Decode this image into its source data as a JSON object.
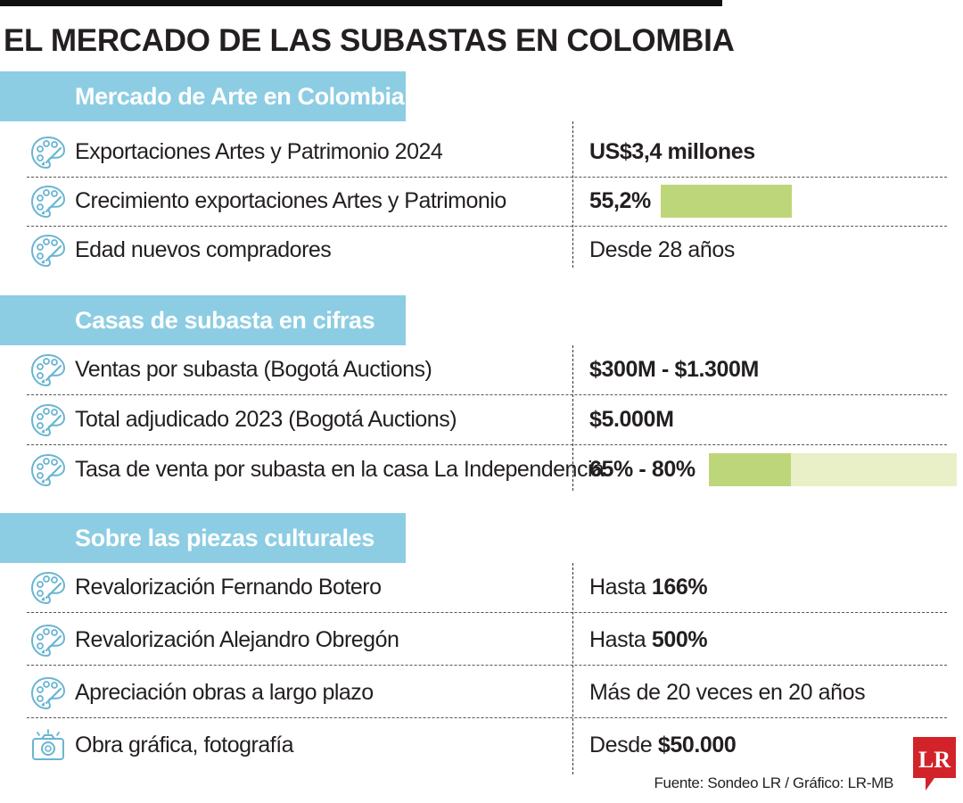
{
  "title": "EL MERCADO DE LAS SUBASTAS EN COLOMBIA",
  "colors": {
    "header_bg": "#8ccde3",
    "icon_stroke": "#6ab5d3",
    "bar_fill": "#bed67a",
    "bar_track": "#e9f0c8",
    "logo_red": "#d2232a"
  },
  "sections": [
    {
      "header": "Mercado de Arte en Colombia",
      "rows": [
        {
          "icon": "palette-icon",
          "label": "Exportaciones Artes y Patrimonio 2024",
          "value": "US$3,4 millones"
        },
        {
          "icon": "palette-icon",
          "label": "Crecimiento exportaciones Artes y Patrimonio",
          "value": "55,2%",
          "bar_percent": 55.2
        },
        {
          "icon": "palette-icon",
          "label": "Edad nuevos compradores",
          "value": "Desde 28 años"
        }
      ]
    },
    {
      "header": "Casas de subasta en cifras",
      "rows": [
        {
          "icon": "palette-icon",
          "label": "Ventas por subasta (Bogotá Auctions)",
          "value": "$300M - $1.300M"
        },
        {
          "icon": "palette-icon",
          "label": "Total adjudicado 2023 (Bogotá Auctions)",
          "value": "$5.000M"
        },
        {
          "icon": "palette-icon",
          "label": "Tasa de venta por subasta en la casa La Independencia",
          "value": "65% - 80%",
          "bar_range": [
            65,
            80
          ]
        }
      ]
    },
    {
      "header": "Sobre las piezas culturales",
      "rows": [
        {
          "icon": "palette-icon",
          "label": "Revalorización Fernando Botero",
          "value_prefix": "Hasta",
          "value_strong": "166%"
        },
        {
          "icon": "palette-icon",
          "label": "Revalorización Alejandro Obregón",
          "value_prefix": "Hasta",
          "value_strong": "500%"
        },
        {
          "icon": "palette-icon",
          "label": "Apreciación obras a largo plazo",
          "value": "Más de 20 veces en 20 años"
        },
        {
          "icon": "camera-icon",
          "label": "Obra gráfica, fotografía",
          "value_prefix": "Desde",
          "value_strong": "$50.000"
        }
      ]
    }
  ],
  "source": "Fuente: Sondeo LR / Gráfico: LR-MB",
  "logo_text": "LR",
  "chart_data": {
    "type": "table",
    "title": "EL MERCADO DE LAS SUBASTAS EN COLOMBIA",
    "bars": [
      {
        "label": "Crecimiento exportaciones Artes y Patrimonio",
        "value": 55.2,
        "unit": "%"
      },
      {
        "label": "Tasa de venta por subasta en la casa La Independencia",
        "range": [
          65,
          80
        ],
        "unit": "%"
      }
    ]
  }
}
